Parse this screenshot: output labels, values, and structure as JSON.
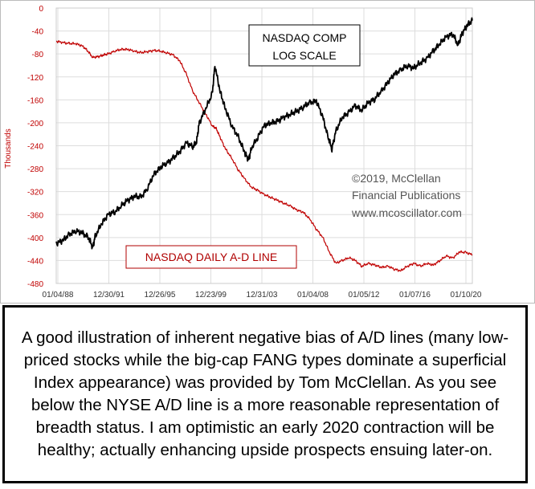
{
  "chart_data": {
    "type": "line",
    "ylabel": "Thousands",
    "ylim": [
      -480,
      0
    ],
    "yticks": [
      "0",
      "-40",
      "-80",
      "-120",
      "-160",
      "-200",
      "-240",
      "-280",
      "-320",
      "-360",
      "-400",
      "-440",
      "-480"
    ],
    "xtick_labels": [
      "01/04/88",
      "12/30/91",
      "12/26/95",
      "12/23/99",
      "12/31/03",
      "01/04/08",
      "01/05/12",
      "01/07/16",
      "01/10/20"
    ],
    "xlim": [
      1988,
      2020
    ],
    "grid": true,
    "colors": {
      "ad_line": "#c00000",
      "nasdaq": "#000000",
      "grid": "#dddddd",
      "axis_text": "#c00000"
    },
    "series": [
      {
        "name": "NASDAQ DAILY A-D LINE",
        "axis": "left",
        "x": [
          1988.0,
          1988.5,
          1989.0,
          1989.5,
          1990.0,
          1990.4,
          1990.8,
          1991.2,
          1991.6,
          1992.0,
          1992.5,
          1993.0,
          1993.5,
          1994.0,
          1994.5,
          1995.0,
          1995.5,
          1996.0,
          1996.5,
          1997.0,
          1997.5,
          1998.0,
          1998.5,
          1999.0,
          1999.5,
          2000.0,
          2000.3,
          2000.6,
          2001.0,
          2001.5,
          2002.0,
          2002.5,
          2003.0,
          2003.5,
          2004.0,
          2004.5,
          2005.0,
          2005.5,
          2006.0,
          2006.5,
          2007.0,
          2007.5,
          2008.0,
          2008.5,
          2009.0,
          2009.5,
          2010.0,
          2010.5,
          2011.0,
          2011.5,
          2012.0,
          2012.5,
          2013.0,
          2013.5,
          2014.0,
          2014.5,
          2015.0,
          2015.5,
          2016.0,
          2016.5,
          2017.0,
          2017.5,
          2018.0,
          2018.5,
          2019.0,
          2019.5,
          2020.0
        ],
        "y": [
          -58,
          -60,
          -62,
          -62,
          -66,
          -74,
          -86,
          -85,
          -82,
          -80,
          -75,
          -72,
          -72,
          -75,
          -78,
          -76,
          -74,
          -75,
          -78,
          -82,
          -92,
          -115,
          -145,
          -165,
          -185,
          -205,
          -210,
          -225,
          -245,
          -262,
          -282,
          -298,
          -312,
          -318,
          -325,
          -330,
          -335,
          -340,
          -345,
          -352,
          -356,
          -368,
          -385,
          -400,
          -425,
          -445,
          -440,
          -435,
          -440,
          -450,
          -445,
          -448,
          -452,
          -450,
          -455,
          -458,
          -450,
          -445,
          -450,
          -445,
          -448,
          -440,
          -432,
          -436,
          -425,
          -426,
          -430
        ]
      },
      {
        "name": "NASDAQ COMP LOG SCALE",
        "axis": "right",
        "x": [
          1988.0,
          1988.5,
          1989.0,
          1989.5,
          1990.0,
          1990.5,
          1990.8,
          1991.0,
          1991.5,
          1992.0,
          1992.5,
          1993.0,
          1993.5,
          1994.0,
          1994.5,
          1995.0,
          1995.5,
          1996.0,
          1996.5,
          1997.0,
          1997.5,
          1998.0,
          1998.5,
          1998.8,
          1999.0,
          1999.5,
          2000.0,
          2000.2,
          2000.6,
          2001.0,
          2001.5,
          2002.0,
          2002.5,
          2002.8,
          2003.0,
          2003.5,
          2004.0,
          2004.5,
          2005.0,
          2005.5,
          2006.0,
          2006.5,
          2007.0,
          2007.5,
          2008.0,
          2008.5,
          2008.9,
          2009.2,
          2009.5,
          2010.0,
          2010.5,
          2011.0,
          2011.5,
          2012.0,
          2012.5,
          2013.0,
          2013.5,
          2014.0,
          2014.5,
          2015.0,
          2015.5,
          2016.0,
          2016.5,
          2017.0,
          2017.5,
          2018.0,
          2018.5,
          2018.9,
          2019.2,
          2019.6,
          2020.0
        ],
        "y": [
          -410,
          -405,
          -395,
          -388,
          -392,
          -400,
          -418,
          -398,
          -375,
          -360,
          -355,
          -345,
          -335,
          -328,
          -330,
          -315,
          -290,
          -278,
          -270,
          -262,
          -250,
          -235,
          -242,
          -232,
          -200,
          -175,
          -150,
          -100,
          -145,
          -175,
          -205,
          -225,
          -252,
          -265,
          -245,
          -225,
          -205,
          -200,
          -198,
          -190,
          -185,
          -180,
          -172,
          -165,
          -162,
          -190,
          -225,
          -245,
          -215,
          -190,
          -182,
          -170,
          -178,
          -165,
          -158,
          -145,
          -130,
          -115,
          -108,
          -100,
          -105,
          -95,
          -88,
          -75,
          -62,
          -50,
          -45,
          -65,
          -45,
          -30,
          -22
        ]
      }
    ],
    "annotations": {
      "nasdaq_box": [
        "NASDAQ COMP",
        "LOG SCALE"
      ],
      "ad_box": "NASDAQ DAILY A-D LINE",
      "credit": [
        "©2019, McClellan",
        "Financial Publications",
        "www.mcoscillator.com"
      ]
    }
  },
  "caption": "A good illustration of inherent negative bias of A/D lines (many low-priced stocks while the big-cap FANG types dominate a superficial Index appearance) was provided by Tom McClellan. As you see below the NYSE A/D line is a more reasonable representation of breadth status. I am optimistic an early 2020 contraction will be healthy; actually enhancing upside prospects ensuing later-on."
}
